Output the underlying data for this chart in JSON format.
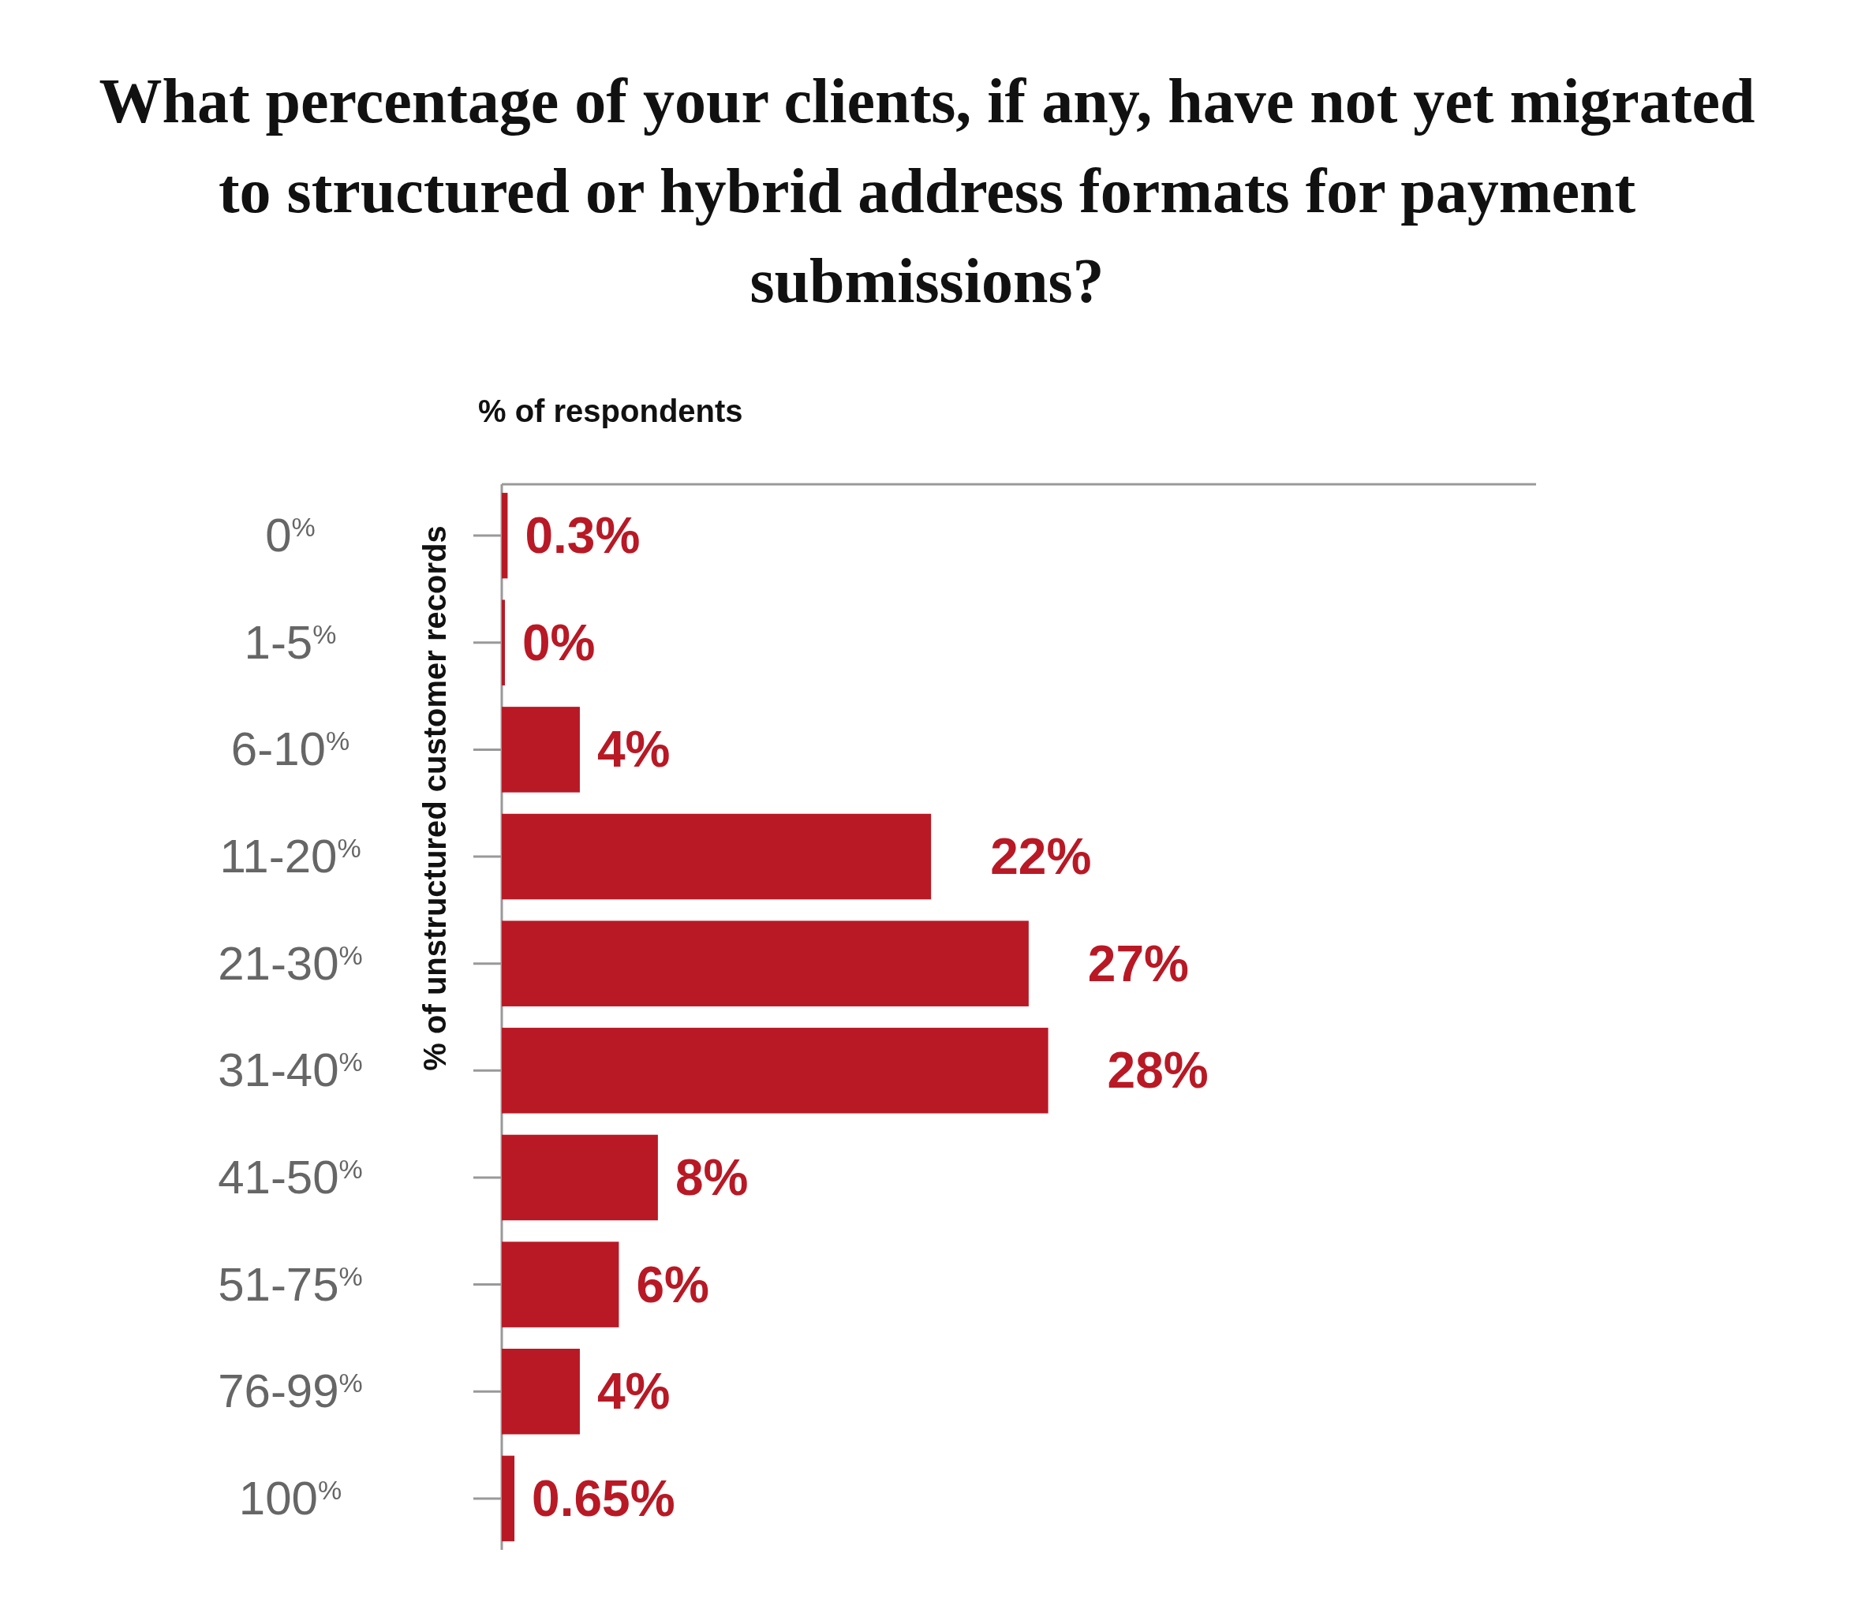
{
  "chart_data": {
    "type": "bar",
    "orientation": "horizontal",
    "title": "What percentage of your clients, if any, have not yet migrated to structured or hybrid address formats for payment submissions?",
    "xlabel": "% of respondents",
    "ylabel": "% of unstructured customer records",
    "categories": [
      "0$^{%}$",
      "1-5$^{%}$",
      "6-10$^{%}$",
      "11-20$^{%}$",
      "21-30$^{%}$",
      "31-40$^{%}$",
      "41-50$^{%}$",
      "51-75$^{%}$",
      "76-99$^{%}$",
      "100$^{%}$"
    ],
    "values": [
      0.3,
      0,
      4,
      22,
      27,
      28,
      8,
      6,
      4,
      0.65
    ],
    "value_labels": [
      "0.3%",
      "0%",
      "4%",
      "22%",
      "27%",
      "28%",
      "8%",
      "6%",
      "4%",
      "0.65%"
    ],
    "color": "#b81925",
    "xlim": [
      0,
      53
    ],
    "tick_labels": "y"
  }
}
